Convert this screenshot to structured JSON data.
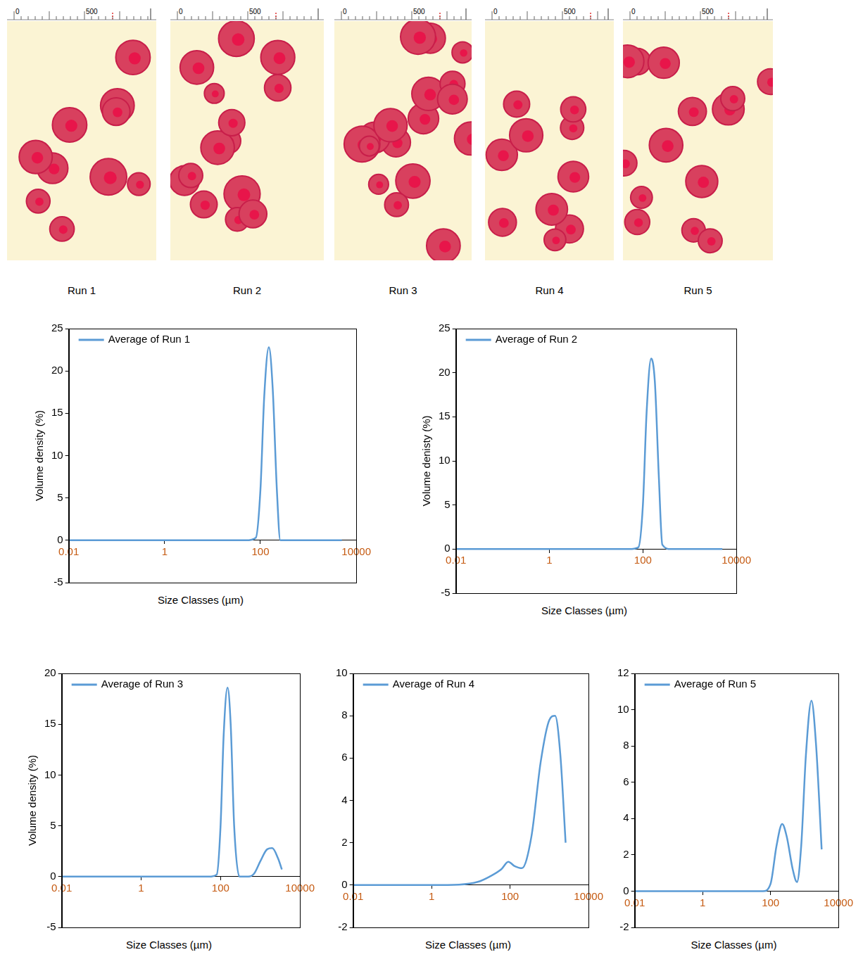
{
  "micrographs": {
    "panels": [
      {
        "label": "Run 1"
      },
      {
        "label": "Run 2"
      },
      {
        "label": "Run 3"
      },
      {
        "label": "Run 4"
      },
      {
        "label": "Run 5"
      }
    ],
    "scale_ticks": [
      0,
      500
    ]
  },
  "chart_data": [
    {
      "type": "line",
      "x": [
        0.01,
        0.1,
        1,
        10,
        50,
        80,
        100,
        120,
        150,
        180,
        220,
        260,
        400,
        1000,
        5000
      ],
      "series": [
        {
          "name": "Average of Run 1",
          "color": "#5b9bd5",
          "values": [
            0,
            0,
            0,
            0,
            0,
            0.3,
            6,
            17,
            22.8,
            18,
            6,
            0,
            0,
            0,
            0
          ]
        }
      ],
      "x_label": "Size Classes (µm)",
      "y_label": "Volume density (%)",
      "xlim": [
        0.01,
        10000
      ],
      "xticks": [
        0.01,
        1,
        100,
        10000
      ],
      "ylim": [
        -5,
        25
      ],
      "yticks": [
        -5,
        0,
        5,
        10,
        15,
        20,
        25
      ],
      "log": "x",
      "grid": false,
      "legend": "upper left"
    },
    {
      "type": "line",
      "x": [
        0.01,
        0.1,
        1,
        10,
        50,
        80,
        100,
        120,
        150,
        180,
        220,
        260,
        400,
        1000,
        5000
      ],
      "series": [
        {
          "name": "Average of Run 2",
          "color": "#5b9bd5",
          "values": [
            0,
            0,
            0,
            0,
            0,
            0.2,
            5,
            15.5,
            21.6,
            19,
            8,
            0.5,
            0,
            0,
            0
          ]
        }
      ],
      "x_label": "Size Classes (µm)",
      "y_label": "Volume denisty (%)",
      "xlim": [
        0.01,
        10000
      ],
      "xticks": [
        0.01,
        1,
        100,
        10000
      ],
      "ylim": [
        -5,
        25
      ],
      "yticks": [
        -5,
        0,
        5,
        10,
        15,
        20,
        25
      ],
      "log": "x",
      "grid": false,
      "legend": "upper left"
    },
    {
      "type": "line",
      "x": [
        0.01,
        0.1,
        1,
        10,
        50,
        80,
        100,
        120,
        150,
        180,
        220,
        300,
        500,
        700,
        1000,
        1500,
        2000,
        2800,
        3500
      ],
      "series": [
        {
          "name": "Average of Run 3",
          "color": "#5b9bd5",
          "values": [
            0,
            0,
            0,
            0,
            0,
            0.2,
            5,
            14,
            18.6,
            15,
            5,
            0,
            0,
            0.3,
            1.5,
            2.7,
            2.8,
            1.8,
            0.7
          ]
        }
      ],
      "x_label": "Size Classes (µm)",
      "y_label": "Volume density (%)",
      "xlim": [
        0.01,
        10000
      ],
      "xticks": [
        0.01,
        1,
        100,
        10000
      ],
      "ylim": [
        -5,
        20
      ],
      "yticks": [
        -5,
        0,
        5,
        10,
        15,
        20
      ],
      "log": "x",
      "grid": false,
      "legend": "upper left"
    },
    {
      "type": "line",
      "x": [
        0.01,
        0.1,
        1,
        5,
        15,
        30,
        60,
        90,
        130,
        200,
        350,
        600,
        1000,
        1400,
        1900,
        2600
      ],
      "series": [
        {
          "name": "Average of Run 4",
          "color": "#5b9bd5",
          "values": [
            0,
            0,
            0,
            0.02,
            0.15,
            0.4,
            0.75,
            1.1,
            0.9,
            0.8,
            2.3,
            5.8,
            7.8,
            8,
            6.2,
            2
          ]
        }
      ],
      "x_label": "Size Classes (µm)",
      "xlim": [
        0.01,
        10000
      ],
      "xticks": [
        0.01,
        1,
        100,
        10000
      ],
      "ylim": [
        -2,
        10
      ],
      "yticks": [
        -2,
        0,
        2,
        4,
        6,
        8,
        10
      ],
      "log": "x",
      "grid": false,
      "legend": "upper left"
    },
    {
      "type": "line",
      "x": [
        0.01,
        0.1,
        1,
        10,
        60,
        100,
        150,
        220,
        300,
        450,
        600,
        800,
        1100,
        1600,
        2200,
        3200
      ],
      "series": [
        {
          "name": "Average of Run 5",
          "color": "#5b9bd5",
          "values": [
            0,
            0,
            0,
            0,
            0,
            0.4,
            2.5,
            3.7,
            3,
            1.2,
            0.5,
            2.5,
            7.5,
            10.5,
            8,
            2.3
          ]
        }
      ],
      "x_label": "Size Classes (µm)",
      "xlim": [
        0.01,
        10000
      ],
      "xticks": [
        0.01,
        1,
        100,
        10000
      ],
      "ylim": [
        -2,
        12
      ],
      "yticks": [
        -2,
        0,
        2,
        4,
        6,
        8,
        10,
        12
      ],
      "log": "x",
      "grid": false,
      "legend": "upper left"
    }
  ]
}
